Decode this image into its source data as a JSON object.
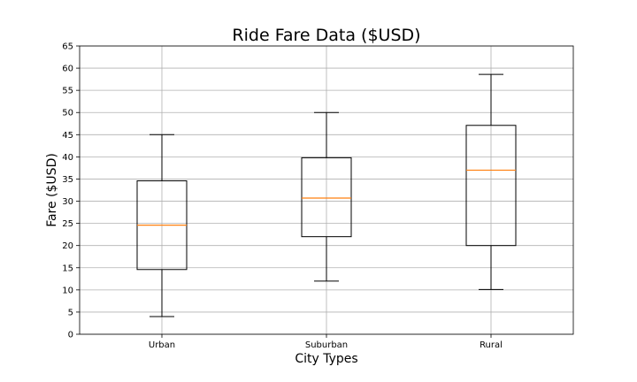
{
  "chart_data": {
    "type": "box",
    "title": "Ride Fare Data ($USD)",
    "xlabel": "City Types",
    "ylabel": "Fare ($USD)",
    "ylim": [
      0,
      65
    ],
    "yticks": [
      0,
      5,
      10,
      15,
      20,
      25,
      30,
      35,
      40,
      45,
      50,
      55,
      60,
      65
    ],
    "grid": true,
    "categories": [
      "Urban",
      "Suburban",
      "Rural"
    ],
    "boxes": [
      {
        "category": "Urban",
        "whisker_low": 4.0,
        "q1": 14.6,
        "median": 24.6,
        "q3": 34.6,
        "whisker_high": 45.0
      },
      {
        "category": "Suburban",
        "whisker_low": 12.0,
        "q1": 22.0,
        "median": 30.7,
        "q3": 39.8,
        "whisker_high": 50.0
      },
      {
        "category": "Rural",
        "whisker_low": 10.1,
        "q1": 20.0,
        "median": 37.0,
        "q3": 47.1,
        "whisker_high": 58.6
      }
    ],
    "colors": {
      "median": "#ff7f0e",
      "box": "#000000",
      "grid": "#b0b0b0"
    }
  }
}
